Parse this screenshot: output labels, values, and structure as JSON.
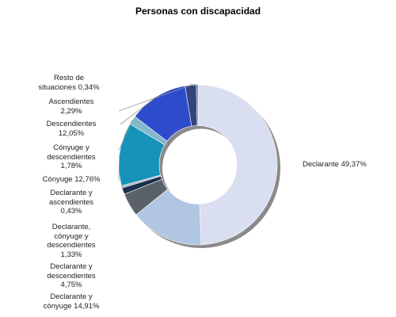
{
  "chart_data": {
    "type": "pie",
    "style": "donut",
    "title": "Personas con discapacidad",
    "slices": [
      {
        "label": "Declarante 49,37%",
        "value": 49.37,
        "color": "#d9def0"
      },
      {
        "label": "Declarante y cónyuge 14,91%",
        "value": 14.91,
        "color": "#b0c6e2"
      },
      {
        "label": "Declarante y descendientes 4,75%",
        "value": 4.75,
        "color": "#5b6168"
      },
      {
        "label": "Declarante, cónyuge y descendientes 1,33%",
        "value": 1.33,
        "color": "#1a2f4d"
      },
      {
        "label": "Declarante y ascendientes 0,43%",
        "value": 0.43,
        "color": "#a9b3c2"
      },
      {
        "label": "Cónyuge 12,76%",
        "value": 12.76,
        "color": "#1693b8"
      },
      {
        "label": "Cónyuge y descendientes 1,78%",
        "value": 1.78,
        "color": "#83b7ca"
      },
      {
        "label": "Descendientes 12,05%",
        "value": 12.05,
        "color": "#2e4bcc"
      },
      {
        "label": "Ascendientes 2,29%",
        "value": 2.29,
        "color": "#33457d"
      },
      {
        "label": "Resto de situaciones 0,34%",
        "value": 0.34,
        "color": "#4d6e8f"
      }
    ]
  }
}
